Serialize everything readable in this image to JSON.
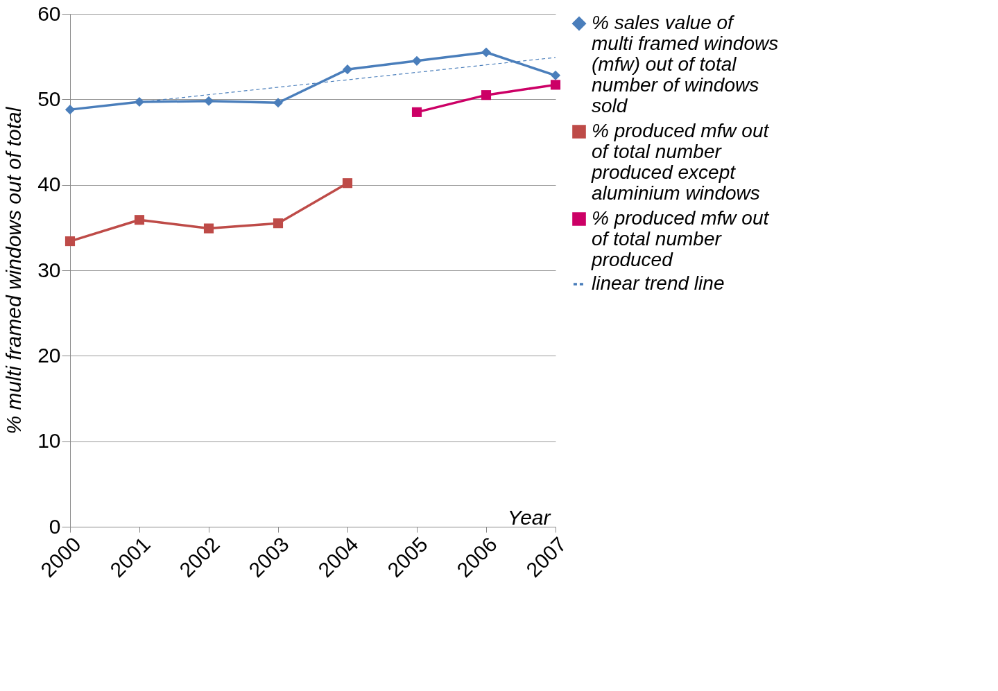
{
  "chart_data": {
    "type": "line",
    "ylabel": "% multi framed windows out of total",
    "xlabel": "Year",
    "x": [
      2000,
      2001,
      2002,
      2003,
      2004,
      2005,
      2006,
      2007
    ],
    "xlim": [
      2000,
      2007
    ],
    "xticks": [
      2000,
      2001,
      2002,
      2003,
      2004,
      2005,
      2006,
      2007
    ],
    "ylim": [
      0,
      60
    ],
    "yticks": [
      0,
      10,
      20,
      30,
      40,
      50,
      60
    ],
    "grid": "y",
    "legend": "right",
    "series": [
      {
        "name": "% sales value of multi framed windows (mfw) out of total number of windows sold",
        "color": "#4a7ebb",
        "marker": "diamond",
        "line_style": "solid",
        "values": [
          48.8,
          49.7,
          49.8,
          49.6,
          53.5,
          54.5,
          55.5,
          52.8
        ]
      },
      {
        "name": "% produced mfw out of total number produced except aluminium windows",
        "color": "#be4b48",
        "marker": "square",
        "line_style": "solid",
        "values": [
          33.4,
          35.9,
          34.9,
          35.5,
          40.2,
          null,
          null,
          null
        ]
      },
      {
        "name": "% produced mfw out of total number produced",
        "color": "#cc0066",
        "marker": "square",
        "line_style": "solid",
        "values": [
          null,
          null,
          null,
          null,
          null,
          48.5,
          50.5,
          51.7
        ]
      },
      {
        "name": "linear trend line",
        "type": "line",
        "color": "#4a7ebb",
        "marker": "none",
        "line_style": "dashed",
        "x": [
          2000,
          2007
        ],
        "values": [
          48.8,
          54.9
        ]
      }
    ]
  }
}
